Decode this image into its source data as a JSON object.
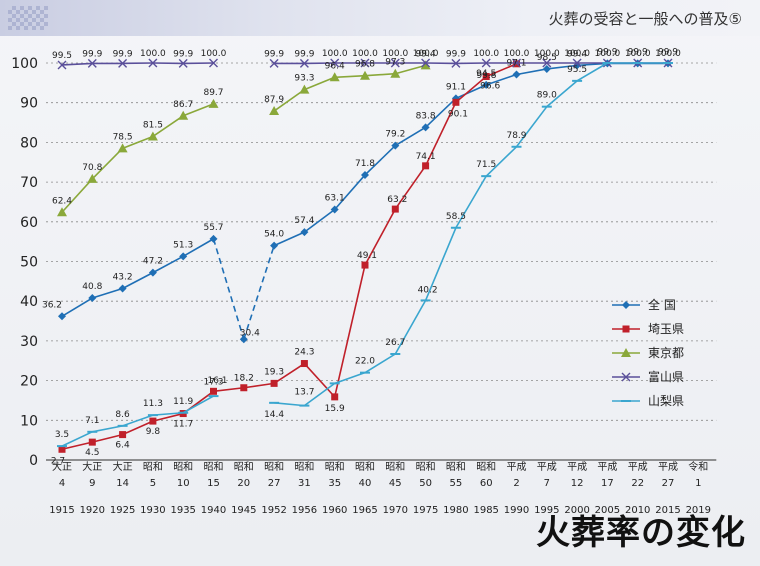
{
  "header": {
    "title": "火葬の受容と一般への普及⑤"
  },
  "caption": "火葬率の変化",
  "chart_data": {
    "type": "line",
    "ylim": [
      0,
      100
    ],
    "yticks": [
      0,
      10,
      20,
      30,
      40,
      50,
      60,
      70,
      80,
      90,
      100
    ],
    "grid": true,
    "legend_position": "right",
    "categories": [
      {
        "era": "大正",
        "num": "4",
        "year": "1915"
      },
      {
        "era": "大正",
        "num": "9",
        "year": "1920"
      },
      {
        "era": "大正",
        "num": "14",
        "year": "1925"
      },
      {
        "era": "昭和",
        "num": "5",
        "year": "1930"
      },
      {
        "era": "昭和",
        "num": "10",
        "year": "1935"
      },
      {
        "era": "昭和",
        "num": "15",
        "year": "1940"
      },
      {
        "era": "昭和",
        "num": "20",
        "year": "1945"
      },
      {
        "era": "昭和",
        "num": "27",
        "year": "1952"
      },
      {
        "era": "昭和",
        "num": "31",
        "year": "1956"
      },
      {
        "era": "昭和",
        "num": "35",
        "year": "1960"
      },
      {
        "era": "昭和",
        "num": "40",
        "year": "1965"
      },
      {
        "era": "昭和",
        "num": "45",
        "year": "1970"
      },
      {
        "era": "昭和",
        "num": "50",
        "year": "1975"
      },
      {
        "era": "昭和",
        "num": "55",
        "year": "1980"
      },
      {
        "era": "昭和",
        "num": "60",
        "year": "1985"
      },
      {
        "era": "平成",
        "num": "2",
        "year": "1990"
      },
      {
        "era": "平成",
        "num": "7",
        "year": "1995"
      },
      {
        "era": "平成",
        "num": "12",
        "year": "2000"
      },
      {
        "era": "平成",
        "num": "17",
        "year": "2005"
      },
      {
        "era": "平成",
        "num": "22",
        "year": "2010"
      },
      {
        "era": "平成",
        "num": "27",
        "year": "2015"
      },
      {
        "era": "令和",
        "num": "1",
        "year": "2019"
      }
    ],
    "series": [
      {
        "name": "全 国",
        "color": "#1f6fb5",
        "marker": "diamond",
        "values": [
          36.2,
          40.8,
          43.2,
          47.2,
          51.3,
          55.7,
          30.4,
          54.0,
          57.4,
          63.1,
          71.8,
          79.2,
          83.8,
          91.1,
          94.5,
          97.1,
          98.5,
          99.4,
          99.9,
          99.9,
          99.9,
          null
        ],
        "labels": [
          "36.2",
          "40.8",
          "43.2",
          "47.2",
          "51.3",
          "55.7",
          "30.4",
          "54.0",
          "57.4",
          "63.1",
          "71.8",
          "79.2",
          "83.8",
          "91.1",
          "94.5",
          "97.1",
          "98.5",
          "99.4",
          "99.9",
          "99.9",
          "99.9",
          ""
        ],
        "dashed_segments": [
          [
            5,
            6
          ],
          [
            6,
            7
          ]
        ]
      },
      {
        "name": "埼玉県",
        "color": "#c0202a",
        "marker": "square",
        "values": [
          2.7,
          4.5,
          6.4,
          9.8,
          11.7,
          17.3,
          18.2,
          19.3,
          24.3,
          15.9,
          49.1,
          63.2,
          74.1,
          90.1,
          96.6,
          99.8,
          null,
          null,
          null,
          null,
          null,
          null
        ],
        "labels": [
          "2.7",
          "4.5",
          "6.4",
          "9.8",
          "11.7",
          "17.3",
          "18.2",
          "19.3",
          "24.3",
          "15.9",
          "49.1",
          "63.2",
          "74.1",
          "90.1",
          "96.6",
          "99.8",
          "",
          "",
          "",
          "",
          "",
          ""
        ]
      },
      {
        "name": "東京都",
        "color": "#8aa83a",
        "marker": "triangle",
        "values": [
          62.4,
          70.8,
          78.5,
          81.5,
          86.7,
          89.7,
          null,
          87.9,
          93.3,
          96.4,
          96.8,
          97.3,
          99.4,
          null,
          null,
          null,
          null,
          null,
          null,
          null,
          null,
          null
        ],
        "labels": [
          "62.4",
          "70.8",
          "78.5",
          "81.5",
          "86.7",
          "89.7",
          "",
          "87.9",
          "93.3",
          "96.4",
          "96.8",
          "97.3",
          "99.4",
          "",
          "",
          "",
          "",
          "",
          "",
          "",
          "",
          ""
        ]
      },
      {
        "name": "富山県",
        "color": "#5a4f9a",
        "marker": "x",
        "values": [
          99.5,
          99.9,
          99.9,
          100.0,
          99.9,
          100.0,
          null,
          99.9,
          99.9,
          100.0,
          100.0,
          100.0,
          100.0,
          99.9,
          100.0,
          100.0,
          100.0,
          100.0,
          100.0,
          100.0,
          100.0,
          null
        ],
        "labels": [
          "99.5",
          "99.9",
          "99.9",
          "100.0",
          "99.9",
          "100.0",
          "",
          "99.9",
          "99.9",
          "100.0",
          "100.0",
          "100.0",
          "100.0",
          "99.9",
          "100.0",
          "100.0",
          "100.0",
          "100.0",
          "100.0",
          "100.0",
          "100.0",
          ""
        ]
      },
      {
        "name": "山梨県",
        "color": "#3aa6cf",
        "marker": "dash",
        "values": [
          3.5,
          7.1,
          8.6,
          11.3,
          11.9,
          16.1,
          null,
          14.4,
          13.7,
          19.3,
          22.0,
          26.7,
          40.2,
          58.5,
          71.5,
          78.9,
          89.0,
          95.5,
          100.0,
          100.0,
          100.0,
          null
        ],
        "labels": [
          "3.5",
          "7.1",
          "8.6",
          "11.3",
          "11.9",
          "16.1",
          "",
          "14.4",
          "13.7",
          "",
          "22.0",
          "26.7",
          "40.2",
          "58.5",
          "71.5",
          "78.9",
          "89.0",
          "95.5",
          "",
          "",
          "",
          ""
        ]
      }
    ]
  }
}
